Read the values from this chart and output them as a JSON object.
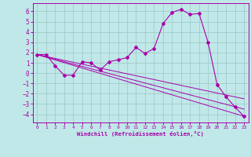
{
  "xlabel": "Windchill (Refroidissement éolien,°C)",
  "xlim": [
    -0.5,
    23.5
  ],
  "ylim": [
    -4.8,
    6.8
  ],
  "yticks": [
    -4,
    -3,
    -2,
    -1,
    0,
    1,
    2,
    3,
    4,
    5,
    6
  ],
  "xticks": [
    0,
    1,
    2,
    3,
    4,
    5,
    6,
    7,
    8,
    9,
    10,
    11,
    12,
    13,
    14,
    15,
    16,
    17,
    18,
    19,
    20,
    21,
    22,
    23
  ],
  "bg_color": "#c0e8e8",
  "grid_color": "#a0cccc",
  "line_color": "#aa00aa",
  "main_x": [
    0,
    1,
    2,
    3,
    4,
    5,
    6,
    7,
    8,
    9,
    10,
    11,
    12,
    13,
    14,
    15,
    16,
    17,
    18,
    19,
    20,
    21,
    22,
    23
  ],
  "main_y": [
    1.8,
    1.8,
    0.7,
    -0.2,
    -0.2,
    1.1,
    1.0,
    0.3,
    1.1,
    1.3,
    1.5,
    2.5,
    1.9,
    2.4,
    4.8,
    5.9,
    6.2,
    5.7,
    5.8,
    3.0,
    -1.1,
    -2.3,
    -3.3,
    -4.2
  ],
  "line2_x": [
    0,
    23
  ],
  "line2_y": [
    1.8,
    -4.2
  ],
  "line3_x": [
    0,
    23
  ],
  "line3_y": [
    1.8,
    -3.5
  ],
  "line4_x": [
    0,
    23
  ],
  "line4_y": [
    1.8,
    -2.5
  ]
}
